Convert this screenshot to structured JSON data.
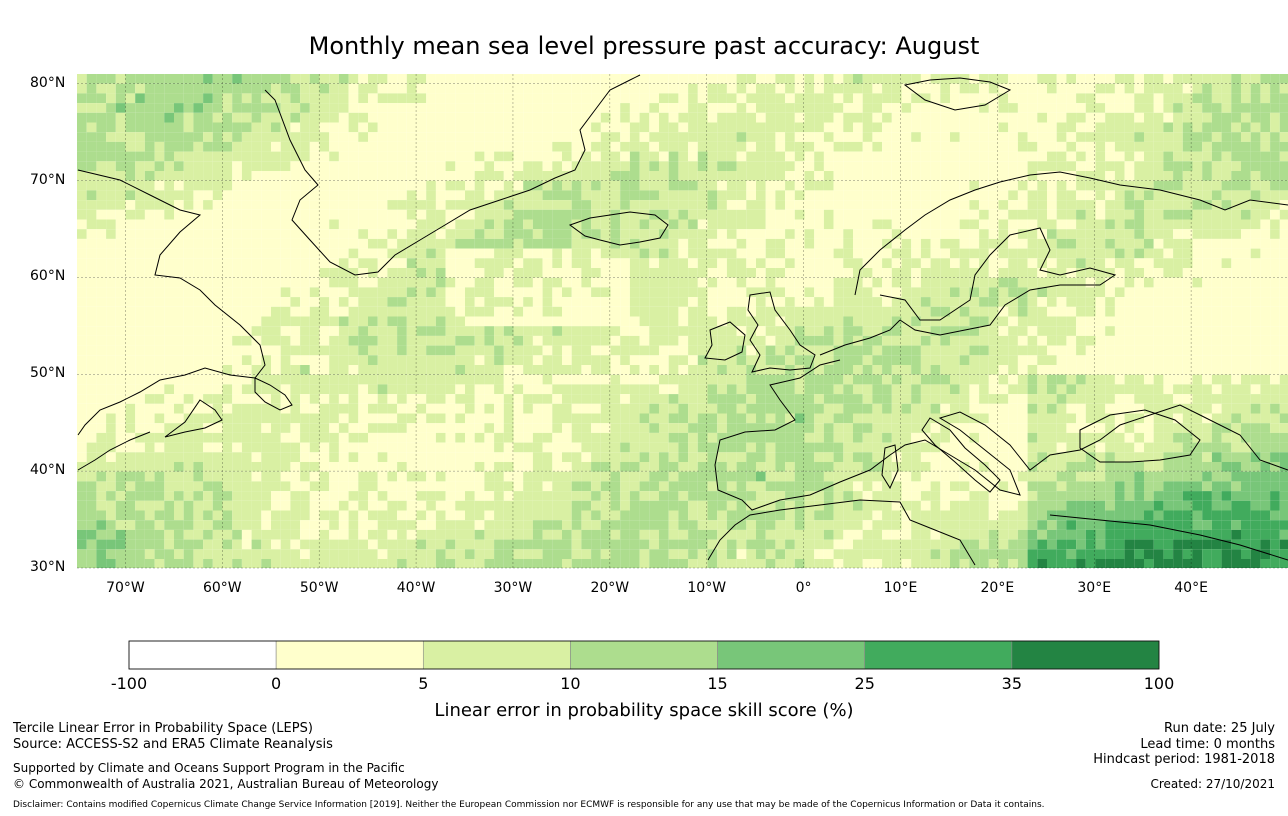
{
  "title": "Monthly mean sea level pressure past accuracy: August",
  "map": {
    "lat_range": [
      30,
      81
    ],
    "lon_range": [
      -75,
      50
    ],
    "lat_labels": [
      "80°N",
      "70°N",
      "60°N",
      "50°N",
      "40°N",
      "30°N"
    ],
    "lat_values": [
      80,
      70,
      60,
      50,
      40,
      30
    ],
    "lon_labels": [
      "70°W",
      "60°W",
      "50°W",
      "40°W",
      "30°W",
      "20°W",
      "10°W",
      "0°",
      "10°E",
      "20°E",
      "30°E",
      "40°E"
    ],
    "lon_values": [
      -70,
      -60,
      -50,
      -40,
      -30,
      -20,
      -10,
      0,
      10,
      20,
      30,
      40
    ],
    "gridlines": true
  },
  "colorbar": {
    "boundaries": [
      "-100",
      "0",
      "5",
      "10",
      "15",
      "25",
      "35",
      "100"
    ],
    "colors": [
      "#ffffff",
      "#ffffcc",
      "#d9f0a3",
      "#addd8e",
      "#78c679",
      "#41ab5d",
      "#238443"
    ],
    "title": "Linear error in probability space skill score (%)"
  },
  "footer": {
    "left_line1": "Tercile Linear Error in Probability Space (LEPS)",
    "left_line2": "Source: ACCESS-S2 and ERA5 Climate Reanalysis",
    "left_line3": "Supported by Climate and Oceans Support Program in the Pacific",
    "left_line4": "© Commonwealth of Australia 2021, Australian Bureau of Meteorology",
    "right_line1": "Run date: 25 July",
    "right_line2": "Lead time: 0 months",
    "right_line3": "Hindcast period: 1981-2018",
    "right_line4": "Created: 27/10/2021",
    "disclaimer": "Disclaimer: Contains modified Copernicus Climate Change Service Information [2019]. Neither the European Commission nor ECMWF is responsible for any use that may be made of the Copernicus Information or Data it contains."
  }
}
